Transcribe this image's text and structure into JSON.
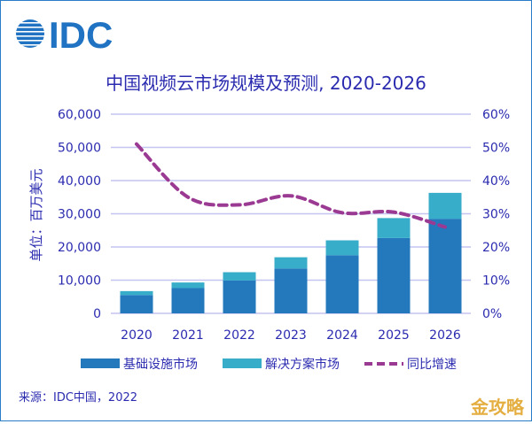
{
  "logo": {
    "text": "IDC",
    "color": "#1f73c2"
  },
  "watermark": "金攻略",
  "source": "来源：IDC中国，2022",
  "chart_data": {
    "type": "bar",
    "stacked": true,
    "title": "中国视频云市场规模及预测, 2020-2026",
    "ylabel": "单位：百万美元",
    "categories": [
      "2020",
      "2021",
      "2022",
      "2023",
      "2024",
      "2025",
      "2026"
    ],
    "ylim": [
      0,
      60000
    ],
    "yticks": [
      "0",
      "10,000",
      "20,000",
      "30,000",
      "40,000",
      "50,000",
      "60,000"
    ],
    "y2lim": [
      0,
      60
    ],
    "y2ticks": [
      "0%",
      "10%",
      "20%",
      "30%",
      "40%",
      "50%",
      "60%"
    ],
    "grid": true,
    "legend_placement": "bottom",
    "series": [
      {
        "name": "基础设施市场",
        "type": "bar",
        "color": "#2479bd",
        "values": [
          5500,
          7600,
          9900,
          13500,
          17500,
          22700,
          28500
        ]
      },
      {
        "name": "解决方案市场",
        "type": "bar",
        "color": "#38adc9",
        "values": [
          1200,
          1700,
          2500,
          3400,
          4500,
          6000,
          7800
        ]
      },
      {
        "name": "同比增速",
        "type": "line",
        "axis": "right",
        "style": "dashed",
        "color": "#9b3a92",
        "values": [
          51,
          35,
          32.7,
          35.4,
          30.3,
          30.5,
          26
        ]
      }
    ]
  },
  "colors": {
    "text": "#2b2bb0",
    "grid": "#c4c4f0",
    "frame": "#2a7cc7"
  }
}
